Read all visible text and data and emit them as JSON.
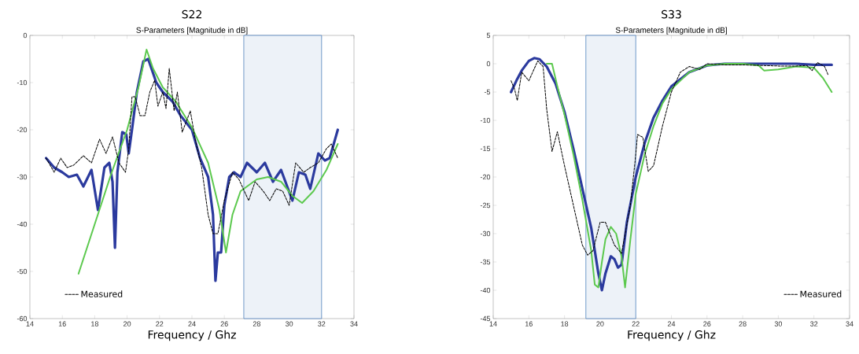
{
  "chart_data": [
    {
      "type": "line",
      "title": "S22",
      "subtitle": "S-Parameters [Magnitude in dB]",
      "xlabel": "Frequency / Ghz",
      "xlim": [
        14,
        34
      ],
      "xticks": [
        14,
        16,
        18,
        20,
        22,
        24,
        26,
        28,
        30,
        32,
        34
      ],
      "ylim": [
        -60,
        0
      ],
      "yticks": [
        -60,
        -50,
        -40,
        -30,
        -20,
        -10,
        0
      ],
      "grid": false,
      "legend": "bottom left",
      "bands": [
        {
          "axis": "x",
          "from": 27.2,
          "to": 32,
          "color": "#4f81bd"
        }
      ],
      "series": [
        {
          "name": "Measured",
          "color": "#000000",
          "line_style": "dashed",
          "x": [
            15.0,
            15.5,
            15.9,
            16.3,
            16.7,
            17.3,
            17.8,
            18.3,
            18.7,
            19.1,
            19.5,
            19.9,
            20.1,
            20.3,
            20.5,
            20.8,
            21.1,
            21.4,
            21.7,
            21.9,
            22.2,
            22.4,
            22.6,
            22.9,
            23.1,
            23.4,
            23.9,
            24.2,
            24.6,
            25.0,
            25.3,
            25.6,
            26.0,
            26.5,
            26.9,
            27.5,
            27.9,
            28.4,
            28.8,
            29.2,
            29.6,
            30.0,
            30.4,
            30.9,
            31.3,
            31.8,
            32.3,
            32.6,
            33.0
          ],
          "values": [
            -26,
            -29,
            -26,
            -28,
            -27.5,
            -25.5,
            -27,
            -22,
            -25,
            -21.5,
            -27,
            -29,
            -24,
            -13,
            -13,
            -17,
            -17,
            -12,
            -9.5,
            -15,
            -12,
            -15.5,
            -7,
            -16,
            -12,
            -20.5,
            -16,
            -22,
            -28,
            -38,
            -42,
            -42,
            -35,
            -29,
            -30.5,
            -35,
            -31,
            -33,
            -35,
            -32.5,
            -33,
            -36,
            -27,
            -29,
            -28,
            -27,
            -24,
            -23,
            -26
          ]
        },
        {
          "color": "#5cc94e",
          "line_style": "solid",
          "x": [
            17.0,
            18.0,
            19.0,
            20.0,
            20.7,
            21.2,
            21.6,
            22.2,
            23.0,
            24.0,
            25.0,
            25.7,
            26.1,
            26.5,
            27.0,
            28.0,
            28.7,
            29.5,
            30.2,
            30.8,
            31.5,
            32.3,
            33.0
          ],
          "values": [
            -50.5,
            -40,
            -29.5,
            -20,
            -11,
            -3,
            -7,
            -11,
            -14,
            -19.5,
            -27,
            -37,
            -46,
            -38,
            -33,
            -30.5,
            -30,
            -31,
            -34,
            -35.5,
            -33,
            -28.5,
            -23
          ]
        },
        {
          "color": "#2b3a9e",
          "line_style": "solid",
          "x": [
            15.0,
            15.5,
            16.0,
            16.4,
            16.9,
            17.3,
            17.8,
            18.2,
            18.6,
            18.9,
            19.1,
            19.25,
            19.4,
            19.7,
            19.95,
            20.1,
            20.3,
            20.6,
            21.0,
            21.3,
            21.8,
            22.2,
            22.8,
            23.3,
            24.0,
            24.5,
            25.0,
            25.3,
            25.45,
            25.6,
            25.8,
            26.0,
            26.3,
            26.6,
            27.0,
            27.4,
            28.0,
            28.5,
            29.0,
            29.5,
            30.2,
            30.6,
            31.0,
            31.3,
            31.8,
            32.2,
            32.5,
            33.0
          ],
          "values": [
            -26,
            -28,
            -29,
            -30,
            -29.5,
            -32,
            -28.5,
            -37,
            -28,
            -27,
            -31,
            -45,
            -29,
            -20.5,
            -21,
            -25,
            -20,
            -12,
            -5.5,
            -5,
            -10,
            -12,
            -14,
            -17,
            -20,
            -26,
            -30,
            -38,
            -52,
            -46,
            -46,
            -36,
            -30,
            -29,
            -30,
            -27,
            -29,
            -27,
            -31,
            -28.5,
            -35,
            -29,
            -29.5,
            -32.5,
            -25,
            -26.5,
            -26,
            -20
          ]
        }
      ]
    },
    {
      "type": "line",
      "title": "S33",
      "subtitle": "S-Parameters [Magnitude in dB]",
      "xlabel": "Frequency / Ghz",
      "xlim": [
        14,
        34
      ],
      "xticks": [
        14,
        16,
        18,
        20,
        22,
        24,
        26,
        28,
        30,
        32,
        34
      ],
      "ylim": [
        -45,
        5
      ],
      "yticks": [
        -45,
        -40,
        -35,
        -30,
        -25,
        -20,
        -15,
        -10,
        -5,
        0,
        5
      ],
      "grid": false,
      "legend": "bottom right",
      "bands": [
        {
          "axis": "x",
          "from": 19.2,
          "to": 22,
          "color": "#4f81bd"
        }
      ],
      "series": [
        {
          "name": "Measured",
          "color": "#000000",
          "line_style": "dashed",
          "x": [
            15.0,
            15.2,
            15.35,
            15.6,
            16.0,
            16.5,
            16.8,
            17.0,
            17.3,
            17.6,
            18.0,
            18.5,
            19.0,
            19.3,
            19.6,
            20.0,
            20.3,
            20.8,
            21.2,
            21.7,
            22.0,
            22.1,
            22.4,
            22.7,
            23.0,
            23.5,
            24.0,
            24.5,
            25.0,
            25.6,
            26.0,
            27.0,
            28.0,
            29.0,
            30.0,
            31.0,
            31.6,
            31.9,
            32.2,
            32.6,
            32.8
          ],
          "values": [
            -3,
            -4.5,
            -6.5,
            -1.5,
            -3,
            0.5,
            -0.5,
            -8,
            -15.5,
            -12,
            -18,
            -25,
            -32,
            -33.8,
            -33,
            -28,
            -28,
            -32,
            -33.5,
            -25,
            -16,
            -12.5,
            -13,
            -19,
            -18,
            -11,
            -5,
            -1.5,
            -0.5,
            -1,
            0,
            -0.2,
            -0.2,
            -0.3,
            -0.4,
            -0.4,
            -0.3,
            -1.2,
            0.2,
            -0.5,
            -2
          ]
        },
        {
          "color": "#5cc94e",
          "line_style": "solid",
          "x": [
            17.0,
            17.3,
            17.6,
            18.0,
            18.5,
            19.0,
            19.5,
            19.7,
            19.9,
            20.1,
            20.3,
            20.6,
            20.9,
            21.2,
            21.4,
            21.7,
            22.0,
            22.5,
            23.0,
            23.5,
            24.0,
            25.0,
            26.0,
            27.0,
            28.0,
            28.9,
            29.2,
            30.0,
            31.0,
            32.0,
            32.5,
            33.0
          ],
          "values": [
            0,
            0,
            -4,
            -9,
            -16,
            -24,
            -33,
            -39,
            -39.5,
            -35,
            -31,
            -28.8,
            -30,
            -34,
            -39.5,
            -31,
            -23,
            -16,
            -11,
            -7,
            -4.5,
            -1.5,
            -0.3,
            0,
            0,
            -0.3,
            -1.2,
            -1,
            -0.5,
            -0.7,
            -2.5,
            -5
          ]
        },
        {
          "color": "#2b3a9e",
          "line_style": "solid",
          "x": [
            15.0,
            15.3,
            15.6,
            16.0,
            16.3,
            16.6,
            17.0,
            17.5,
            18.0,
            18.5,
            19.0,
            19.5,
            19.9,
            20.1,
            20.3,
            20.6,
            20.8,
            21.0,
            21.2,
            21.5,
            22.0,
            22.5,
            23.0,
            23.5,
            24.0,
            25.0,
            26.0,
            27.0,
            28.0,
            29.0,
            30.0,
            31.0,
            32.0,
            33.0
          ],
          "values": [
            -5,
            -3,
            -1.2,
            0.5,
            1,
            0.8,
            -0.5,
            -3.5,
            -8.5,
            -15,
            -22,
            -29,
            -37,
            -40,
            -37,
            -34,
            -34.5,
            -36,
            -35.5,
            -28,
            -20,
            -14,
            -9.5,
            -6.5,
            -4,
            -1.5,
            -0.3,
            0,
            0,
            0,
            0,
            0,
            -0.2,
            -0.2
          ]
        }
      ]
    }
  ]
}
